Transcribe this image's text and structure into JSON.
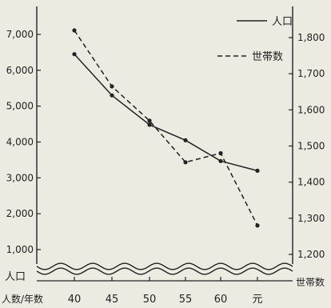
{
  "chart_data": {
    "type": "line",
    "title": "",
    "x_axis": {
      "label": "人数/年数",
      "categories": [
        "40",
        "45",
        "50",
        "55",
        "60",
        "元"
      ]
    },
    "y_left": {
      "label": "人口",
      "ticks": [
        "1,000",
        "2,000",
        "3,000",
        "4,000",
        "5,000",
        "6,000",
        "7,000"
      ],
      "range": [
        1000,
        7000
      ]
    },
    "y_right": {
      "label": "世帯数",
      "ticks": [
        "1,200",
        "1,300",
        "1,400",
        "1,500",
        "1,600",
        "1,700",
        "1,800"
      ],
      "range": [
        1200,
        1800
      ]
    },
    "series": [
      {
        "name": "人口",
        "axis": "left",
        "style": "solid",
        "values": [
          6450,
          5300,
          4480,
          4050,
          3470,
          3200
        ]
      },
      {
        "name": "世帯数",
        "axis": "right",
        "style": "dashed",
        "values": [
          1820,
          1665,
          1570,
          1455,
          1480,
          1280
        ]
      }
    ],
    "legend": {
      "position": "top-right",
      "entries": [
        "人口",
        "世帯数"
      ]
    },
    "axis_break": true,
    "grid": false
  }
}
